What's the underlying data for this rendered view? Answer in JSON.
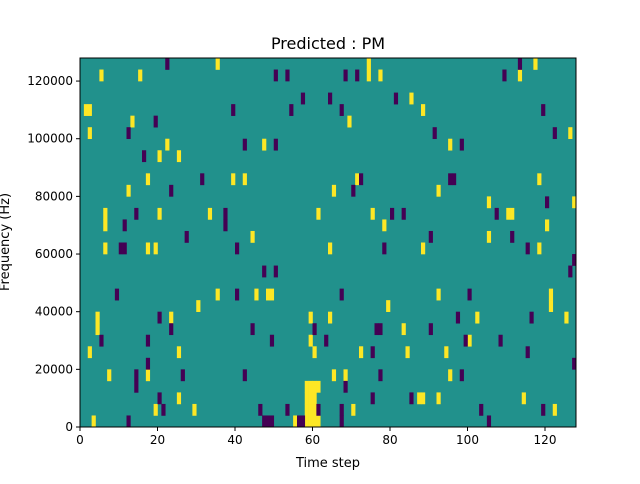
{
  "chart_data": {
    "type": "heatmap",
    "title": "Predicted : PM",
    "xlabel": "Time step",
    "ylabel": "Frequency (Hz)",
    "xlim": [
      0,
      128
    ],
    "ylim": [
      0,
      128000
    ],
    "n_time": 128,
    "n_freq": 32,
    "freq_bin_hz": 4000,
    "xticks": [
      0,
      20,
      40,
      60,
      80,
      100,
      120
    ],
    "xtick_labels": [
      "0",
      "20",
      "40",
      "60",
      "80",
      "100",
      "120"
    ],
    "yticks": [
      0,
      20000,
      40000,
      60000,
      80000,
      100000,
      120000
    ],
    "ytick_labels": [
      "0",
      "20000",
      "40000",
      "60000",
      "80000",
      "100000",
      "120000"
    ],
    "colormap": "viridis",
    "colors": {
      "low": "#440154",
      "mid": "#21918c",
      "high": "#fde725"
    },
    "background_value": 0.5,
    "high_cells": [
      [
        3,
        0
      ],
      [
        1,
        27
      ],
      [
        2,
        27
      ],
      [
        2,
        25
      ],
      [
        4,
        9
      ],
      [
        4,
        8
      ],
      [
        2,
        6
      ],
      [
        5,
        30
      ],
      [
        6,
        17
      ],
      [
        6,
        18
      ],
      [
        6,
        15
      ],
      [
        7,
        4
      ],
      [
        12,
        20
      ],
      [
        13,
        26
      ],
      [
        15,
        30
      ],
      [
        17,
        21
      ],
      [
        17,
        15
      ],
      [
        17,
        4
      ],
      [
        20,
        23
      ],
      [
        20,
        18
      ],
      [
        19,
        15
      ],
      [
        19,
        1
      ],
      [
        22,
        24
      ],
      [
        23,
        9
      ],
      [
        25,
        2
      ],
      [
        25,
        6
      ],
      [
        25,
        23
      ],
      [
        29,
        1
      ],
      [
        30,
        10
      ],
      [
        33,
        18
      ],
      [
        35,
        31
      ],
      [
        35,
        11
      ],
      [
        39,
        21
      ],
      [
        42,
        21
      ],
      [
        44,
        16
      ],
      [
        45,
        11
      ],
      [
        47,
        24
      ],
      [
        48,
        11
      ],
      [
        49,
        11
      ],
      [
        59,
        9
      ],
      [
        59,
        7
      ],
      [
        60,
        6
      ],
      [
        58,
        0
      ],
      [
        58,
        1
      ],
      [
        58,
        2
      ],
      [
        58,
        3
      ],
      [
        59,
        0
      ],
      [
        59,
        1
      ],
      [
        59,
        2
      ],
      [
        59,
        3
      ],
      [
        60,
        0
      ],
      [
        60,
        1
      ],
      [
        60,
        2
      ],
      [
        60,
        3
      ],
      [
        61,
        0
      ],
      [
        61,
        3
      ],
      [
        55,
        0
      ],
      [
        61,
        18
      ],
      [
        64,
        15
      ],
      [
        65,
        20
      ],
      [
        64,
        9
      ],
      [
        65,
        4
      ],
      [
        68,
        4
      ],
      [
        69,
        26
      ],
      [
        70,
        1
      ],
      [
        71,
        21
      ],
      [
        72,
        6
      ],
      [
        74,
        30
      ],
      [
        74,
        31
      ],
      [
        75,
        18
      ],
      [
        77,
        30
      ],
      [
        78,
        17
      ],
      [
        79,
        10
      ],
      [
        83,
        8
      ],
      [
        84,
        6
      ],
      [
        85,
        28
      ],
      [
        87,
        2
      ],
      [
        88,
        27
      ],
      [
        88,
        15
      ],
      [
        92,
        20
      ],
      [
        92,
        11
      ],
      [
        94,
        6
      ],
      [
        95,
        24
      ],
      [
        95,
        4
      ],
      [
        88,
        2
      ],
      [
        92,
        2
      ],
      [
        100,
        7
      ],
      [
        102,
        9
      ],
      [
        105,
        19
      ],
      [
        105,
        16
      ],
      [
        110,
        18
      ],
      [
        111,
        18
      ],
      [
        113,
        30
      ],
      [
        114,
        2
      ],
      [
        117,
        31
      ],
      [
        118,
        21
      ],
      [
        118,
        15
      ],
      [
        120,
        17
      ],
      [
        121,
        11
      ],
      [
        121,
        10
      ],
      [
        125,
        9
      ],
      [
        126,
        25
      ],
      [
        127,
        19
      ],
      [
        122,
        1
      ]
    ],
    "low_cells": [
      [
        12,
        0
      ],
      [
        12,
        25
      ],
      [
        11,
        17
      ],
      [
        10,
        15
      ],
      [
        11,
        15
      ],
      [
        9,
        11
      ],
      [
        5,
        7
      ],
      [
        14,
        4
      ],
      [
        14,
        3
      ],
      [
        14,
        18
      ],
      [
        16,
        23
      ],
      [
        17,
        5
      ],
      [
        17,
        7
      ],
      [
        19,
        26
      ],
      [
        20,
        9
      ],
      [
        20,
        2
      ],
      [
        21,
        1
      ],
      [
        22,
        31
      ],
      [
        23,
        8
      ],
      [
        23,
        20
      ],
      [
        26,
        4
      ],
      [
        27,
        16
      ],
      [
        31,
        21
      ],
      [
        37,
        17
      ],
      [
        37,
        18
      ],
      [
        39,
        27
      ],
      [
        40,
        15
      ],
      [
        40,
        11
      ],
      [
        42,
        4
      ],
      [
        42,
        24
      ],
      [
        44,
        8
      ],
      [
        46,
        1
      ],
      [
        47,
        0
      ],
      [
        48,
        0
      ],
      [
        49,
        0
      ],
      [
        47,
        13
      ],
      [
        49,
        7
      ],
      [
        50,
        30
      ],
      [
        50,
        24
      ],
      [
        50,
        13
      ],
      [
        53,
        30
      ],
      [
        54,
        27
      ],
      [
        57,
        28
      ],
      [
        53,
        1
      ],
      [
        56,
        0
      ],
      [
        57,
        0
      ],
      [
        61,
        1
      ],
      [
        63,
        7
      ],
      [
        60,
        8
      ],
      [
        64,
        28
      ],
      [
        68,
        30
      ],
      [
        67,
        27
      ],
      [
        68,
        3
      ],
      [
        67,
        11
      ],
      [
        67,
        1
      ],
      [
        67,
        0
      ],
      [
        70,
        20
      ],
      [
        71,
        30
      ],
      [
        72,
        21
      ],
      [
        75,
        2
      ],
      [
        75,
        6
      ],
      [
        76,
        8
      ],
      [
        77,
        8
      ],
      [
        78,
        15
      ],
      [
        77,
        4
      ],
      [
        80,
        18
      ],
      [
        81,
        28
      ],
      [
        83,
        18
      ],
      [
        85,
        2
      ],
      [
        90,
        16
      ],
      [
        90,
        8
      ],
      [
        91,
        25
      ],
      [
        95,
        21
      ],
      [
        96,
        21
      ],
      [
        98,
        24
      ],
      [
        97,
        9
      ],
      [
        99,
        7
      ],
      [
        100,
        11
      ],
      [
        98,
        4
      ],
      [
        103,
        1
      ],
      [
        105,
        0
      ],
      [
        107,
        18
      ],
      [
        108,
        7
      ],
      [
        109,
        30
      ],
      [
        111,
        16
      ],
      [
        113,
        31
      ],
      [
        115,
        15
      ],
      [
        115,
        6
      ],
      [
        116,
        9
      ],
      [
        119,
        27
      ],
      [
        119,
        1
      ],
      [
        120,
        19
      ],
      [
        122,
        25
      ],
      [
        126,
        13
      ],
      [
        127,
        14
      ],
      [
        127,
        5
      ]
    ]
  }
}
